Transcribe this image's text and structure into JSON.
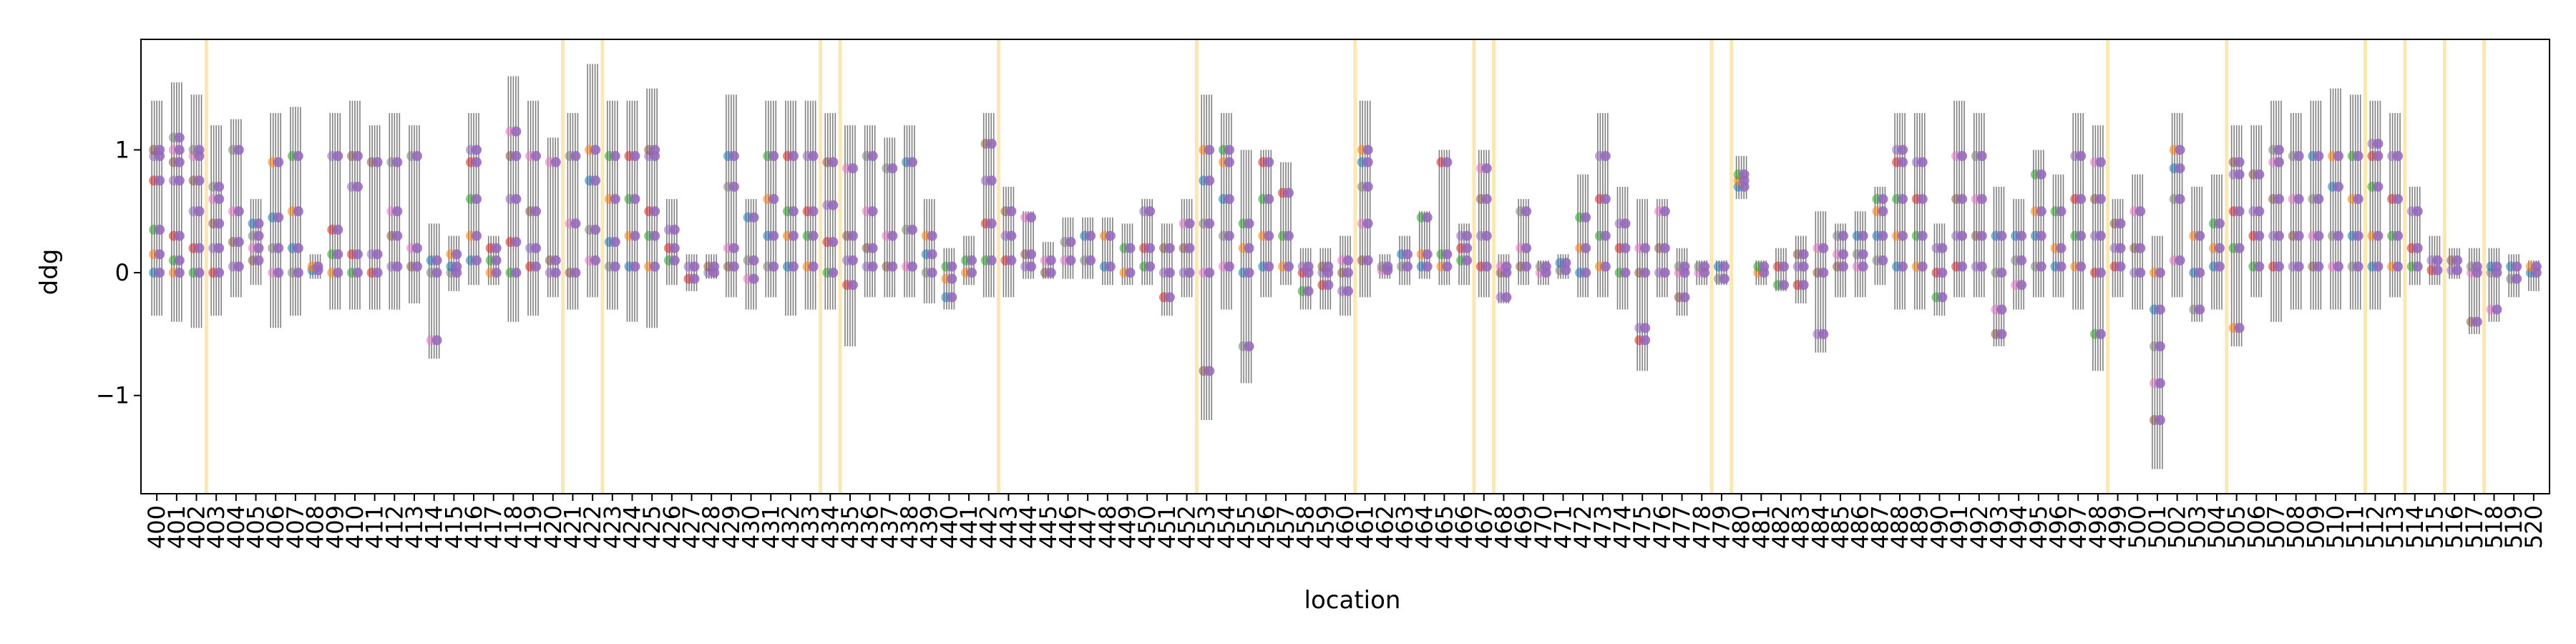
{
  "chart_data": {
    "type": "scatter",
    "title": "",
    "xlabel": "location",
    "ylabel": "ddg",
    "x_start": 400,
    "x_end": 520,
    "ylim": [
      -1.8,
      1.9
    ],
    "yticks": [
      -1,
      0,
      1
    ],
    "ytick_labels": [
      "−1",
      "0",
      "1"
    ],
    "highlight_locations": [
      403,
      421,
      423,
      434,
      435,
      443,
      453,
      461,
      467,
      468,
      479,
      480,
      499,
      505,
      512,
      514,
      516,
      518
    ],
    "colors": {
      "highlight": "#fbe7b3",
      "errorbar": "#808080",
      "series": [
        "#1f77b4",
        "#ff7f0e",
        "#2ca02c",
        "#d62728",
        "#9467bd",
        "#8c564b",
        "#e377c2",
        "#7f7f7f"
      ]
    },
    "locations": [
      {
        "x": 400,
        "lo": -0.35,
        "hi": 1.4,
        "pts": [
          0,
          0.15,
          0.35,
          0.75,
          0.95,
          1.0
        ]
      },
      {
        "x": 401,
        "lo": -0.4,
        "hi": 1.55,
        "pts": [
          0,
          0.1,
          0.3,
          0.75,
          0.9,
          1.0,
          1.1
        ]
      },
      {
        "x": 402,
        "lo": -0.45,
        "hi": 1.45,
        "pts": [
          0,
          0.2,
          0.5,
          0.75,
          0.95,
          1.0
        ]
      },
      {
        "x": 403,
        "lo": -0.35,
        "hi": 1.2,
        "pts": [
          0,
          0.2,
          0.4,
          0.6,
          0.7
        ]
      },
      {
        "x": 404,
        "lo": -0.2,
        "hi": 1.25,
        "pts": [
          0.05,
          0.25,
          0.5,
          1.0
        ]
      },
      {
        "x": 405,
        "lo": -0.1,
        "hi": 0.6,
        "pts": [
          0.1,
          0.2,
          0.3,
          0.4
        ]
      },
      {
        "x": 406,
        "lo": -0.45,
        "hi": 1.3,
        "pts": [
          0,
          0.2,
          0.45,
          0.9
        ]
      },
      {
        "x": 407,
        "lo": -0.35,
        "hi": 1.35,
        "pts": [
          0,
          0.2,
          0.5,
          0.95
        ]
      },
      {
        "x": 408,
        "lo": -0.05,
        "hi": 0.15,
        "pts": [
          0.02,
          0.05
        ]
      },
      {
        "x": 409,
        "lo": -0.3,
        "hi": 1.3,
        "pts": [
          0,
          0.15,
          0.35,
          0.95
        ]
      },
      {
        "x": 410,
        "lo": -0.3,
        "hi": 1.4,
        "pts": [
          0,
          0.15,
          0.7,
          0.95
        ]
      },
      {
        "x": 411,
        "lo": -0.3,
        "hi": 1.2,
        "pts": [
          0,
          0.15,
          0.9
        ]
      },
      {
        "x": 412,
        "lo": -0.3,
        "hi": 1.3,
        "pts": [
          0.05,
          0.3,
          0.5,
          0.9
        ]
      },
      {
        "x": 413,
        "lo": -0.25,
        "hi": 1.2,
        "pts": [
          0.05,
          0.2,
          0.95
        ]
      },
      {
        "x": 414,
        "lo": -0.7,
        "hi": 0.4,
        "pts": [
          -0.55,
          0,
          0.1
        ]
      },
      {
        "x": 415,
        "lo": -0.15,
        "hi": 0.3,
        "pts": [
          0,
          0.05,
          0.15
        ]
      },
      {
        "x": 416,
        "lo": -0.1,
        "hi": 1.3,
        "pts": [
          0.1,
          0.3,
          0.6,
          0.9,
          1.0
        ]
      },
      {
        "x": 417,
        "lo": -0.1,
        "hi": 0.3,
        "pts": [
          0,
          0.1,
          0.2
        ]
      },
      {
        "x": 418,
        "lo": -0.4,
        "hi": 1.6,
        "pts": [
          0,
          0.25,
          0.6,
          0.95,
          1.15
        ]
      },
      {
        "x": 419,
        "lo": -0.35,
        "hi": 1.4,
        "pts": [
          0.05,
          0.2,
          0.5,
          0.95
        ]
      },
      {
        "x": 420,
        "lo": -0.2,
        "hi": 1.1,
        "pts": [
          0,
          0.1,
          0.9
        ]
      },
      {
        "x": 421,
        "lo": -0.3,
        "hi": 1.3,
        "pts": [
          0,
          0.4,
          0.95
        ]
      },
      {
        "x": 422,
        "lo": -0.2,
        "hi": 1.7,
        "pts": [
          0.1,
          0.35,
          0.75,
          1.0
        ]
      },
      {
        "x": 423,
        "lo": -0.3,
        "hi": 1.4,
        "pts": [
          0.05,
          0.25,
          0.6,
          0.95
        ]
      },
      {
        "x": 424,
        "lo": -0.4,
        "hi": 1.4,
        "pts": [
          0.05,
          0.3,
          0.6,
          0.95
        ]
      },
      {
        "x": 425,
        "lo": -0.45,
        "hi": 1.5,
        "pts": [
          0.05,
          0.3,
          0.5,
          0.95,
          1.0
        ]
      },
      {
        "x": 426,
        "lo": -0.1,
        "hi": 0.6,
        "pts": [
          0.1,
          0.2,
          0.35
        ]
      },
      {
        "x": 427,
        "lo": -0.15,
        "hi": 0.15,
        "pts": [
          -0.05,
          0.05
        ]
      },
      {
        "x": 428,
        "lo": -0.05,
        "hi": 0.15,
        "pts": [
          0,
          0.05
        ]
      },
      {
        "x": 429,
        "lo": -0.2,
        "hi": 1.45,
        "pts": [
          0.05,
          0.2,
          0.7,
          0.95
        ]
      },
      {
        "x": 430,
        "lo": -0.3,
        "hi": 0.6,
        "pts": [
          -0.05,
          0.1,
          0.45
        ]
      },
      {
        "x": 431,
        "lo": -0.2,
        "hi": 1.4,
        "pts": [
          0.05,
          0.3,
          0.6,
          0.95
        ]
      },
      {
        "x": 432,
        "lo": -0.35,
        "hi": 1.4,
        "pts": [
          0.05,
          0.3,
          0.5,
          0.95
        ]
      },
      {
        "x": 433,
        "lo": -0.3,
        "hi": 1.4,
        "pts": [
          0.05,
          0.3,
          0.5,
          0.95
        ]
      },
      {
        "x": 434,
        "lo": -0.3,
        "hi": 1.3,
        "pts": [
          0,
          0.25,
          0.55,
          0.9
        ]
      },
      {
        "x": 435,
        "lo": -0.6,
        "hi": 1.2,
        "pts": [
          -0.1,
          0.1,
          0.3,
          0.85
        ]
      },
      {
        "x": 436,
        "lo": -0.2,
        "hi": 1.2,
        "pts": [
          0.05,
          0.2,
          0.5,
          0.95
        ]
      },
      {
        "x": 437,
        "lo": -0.2,
        "hi": 1.1,
        "pts": [
          0.05,
          0.3,
          0.85
        ]
      },
      {
        "x": 438,
        "lo": -0.2,
        "hi": 1.2,
        "pts": [
          0.05,
          0.35,
          0.9
        ]
      },
      {
        "x": 439,
        "lo": -0.25,
        "hi": 0.6,
        "pts": [
          0,
          0.15,
          0.3
        ]
      },
      {
        "x": 440,
        "lo": -0.3,
        "hi": 0.2,
        "pts": [
          -0.2,
          -0.05,
          0.05
        ]
      },
      {
        "x": 441,
        "lo": -0.1,
        "hi": 0.3,
        "pts": [
          0,
          0.1
        ]
      },
      {
        "x": 442,
        "lo": -0.2,
        "hi": 1.3,
        "pts": [
          0.1,
          0.4,
          0.75,
          1.05
        ]
      },
      {
        "x": 443,
        "lo": -0.2,
        "hi": 0.7,
        "pts": [
          0.1,
          0.3,
          0.5
        ]
      },
      {
        "x": 444,
        "lo": -0.05,
        "hi": 0.5,
        "pts": [
          0.05,
          0.15,
          0.45
        ]
      },
      {
        "x": 445,
        "lo": -0.05,
        "hi": 0.25,
        "pts": [
          0,
          0.1
        ]
      },
      {
        "x": 446,
        "lo": -0.05,
        "hi": 0.45,
        "pts": [
          0.1,
          0.25
        ]
      },
      {
        "x": 447,
        "lo": -0.05,
        "hi": 0.45,
        "pts": [
          0.1,
          0.3
        ]
      },
      {
        "x": 448,
        "lo": -0.1,
        "hi": 0.45,
        "pts": [
          0.05,
          0.3
        ]
      },
      {
        "x": 449,
        "lo": -0.1,
        "hi": 0.4,
        "pts": [
          0,
          0.2
        ]
      },
      {
        "x": 450,
        "lo": -0.1,
        "hi": 0.6,
        "pts": [
          0.05,
          0.2,
          0.5
        ]
      },
      {
        "x": 451,
        "lo": -0.35,
        "hi": 0.4,
        "pts": [
          -0.2,
          0,
          0.2
        ]
      },
      {
        "x": 452,
        "lo": -0.2,
        "hi": 0.6,
        "pts": [
          0,
          0.2,
          0.4
        ]
      },
      {
        "x": 453,
        "lo": -1.2,
        "hi": 1.45,
        "pts": [
          -0.8,
          0,
          0.4,
          0.75,
          1.0
        ]
      },
      {
        "x": 454,
        "lo": -0.3,
        "hi": 1.3,
        "pts": [
          0.05,
          0.3,
          0.6,
          0.9,
          1.0
        ]
      },
      {
        "x": 455,
        "lo": -0.9,
        "hi": 1.0,
        "pts": [
          -0.6,
          0,
          0.2,
          0.4
        ]
      },
      {
        "x": 456,
        "lo": -0.2,
        "hi": 1.0,
        "pts": [
          0.05,
          0.3,
          0.6,
          0.9
        ]
      },
      {
        "x": 457,
        "lo": -0.1,
        "hi": 0.9,
        "pts": [
          0.05,
          0.3,
          0.65
        ]
      },
      {
        "x": 458,
        "lo": -0.3,
        "hi": 0.2,
        "pts": [
          -0.15,
          0,
          0.05
        ]
      },
      {
        "x": 459,
        "lo": -0.3,
        "hi": 0.2,
        "pts": [
          -0.1,
          0,
          0.05
        ]
      },
      {
        "x": 460,
        "lo": -0.35,
        "hi": 0.3,
        "pts": [
          -0.15,
          0,
          0.1
        ]
      },
      {
        "x": 461,
        "lo": -0.2,
        "hi": 1.4,
        "pts": [
          0.1,
          0.4,
          0.7,
          0.9,
          1.0
        ]
      },
      {
        "x": 462,
        "lo": -0.05,
        "hi": 0.15,
        "pts": [
          0.02,
          0.05
        ]
      },
      {
        "x": 463,
        "lo": -0.1,
        "hi": 0.3,
        "pts": [
          0.05,
          0.15
        ]
      },
      {
        "x": 464,
        "lo": -0.05,
        "hi": 0.5,
        "pts": [
          0.05,
          0.15,
          0.45
        ]
      },
      {
        "x": 465,
        "lo": -0.1,
        "hi": 1.0,
        "pts": [
          0.05,
          0.15,
          0.9
        ]
      },
      {
        "x": 466,
        "lo": -0.1,
        "hi": 0.4,
        "pts": [
          0.1,
          0.2,
          0.3
        ]
      },
      {
        "x": 467,
        "lo": -0.2,
        "hi": 1.0,
        "pts": [
          0.05,
          0.3,
          0.6,
          0.85
        ]
      },
      {
        "x": 468,
        "lo": -0.25,
        "hi": 0.15,
        "pts": [
          -0.2,
          0,
          0.05
        ]
      },
      {
        "x": 469,
        "lo": -0.1,
        "hi": 0.6,
        "pts": [
          0.05,
          0.2,
          0.5
        ]
      },
      {
        "x": 470,
        "lo": -0.1,
        "hi": 0.1,
        "pts": [
          0,
          0.05
        ]
      },
      {
        "x": 471,
        "lo": -0.05,
        "hi": 0.15,
        "pts": [
          0.02,
          0.08
        ]
      },
      {
        "x": 472,
        "lo": -0.2,
        "hi": 0.8,
        "pts": [
          0,
          0.2,
          0.45
        ]
      },
      {
        "x": 473,
        "lo": -0.2,
        "hi": 1.3,
        "pts": [
          0.05,
          0.3,
          0.6,
          0.95
        ]
      },
      {
        "x": 474,
        "lo": -0.3,
        "hi": 0.7,
        "pts": [
          0,
          0.2,
          0.4
        ]
      },
      {
        "x": 475,
        "lo": -0.8,
        "hi": 0.6,
        "pts": [
          -0.55,
          -0.45,
          0,
          0.2
        ]
      },
      {
        "x": 476,
        "lo": -0.2,
        "hi": 0.6,
        "pts": [
          0,
          0.2,
          0.5
        ]
      },
      {
        "x": 477,
        "lo": -0.35,
        "hi": 0.2,
        "pts": [
          -0.2,
          0,
          0.05
        ]
      },
      {
        "x": 478,
        "lo": -0.1,
        "hi": 0.1,
        "pts": [
          0,
          0.05
        ]
      },
      {
        "x": 479,
        "lo": -0.1,
        "hi": 0.1,
        "pts": [
          -0.05,
          0.05
        ]
      },
      {
        "x": 480,
        "lo": 0.6,
        "hi": 0.95,
        "pts": [
          0.7,
          0.75,
          0.8
        ]
      },
      {
        "x": 481,
        "lo": -0.1,
        "hi": 0.1,
        "pts": [
          0,
          0.05
        ]
      },
      {
        "x": 482,
        "lo": -0.15,
        "hi": 0.2,
        "pts": [
          -0.1,
          0.05
        ]
      },
      {
        "x": 483,
        "lo": -0.25,
        "hi": 0.3,
        "pts": [
          -0.1,
          0.05,
          0.15
        ]
      },
      {
        "x": 484,
        "lo": -0.65,
        "hi": 0.5,
        "pts": [
          -0.5,
          0,
          0.2
        ]
      },
      {
        "x": 485,
        "lo": -0.2,
        "hi": 0.4,
        "pts": [
          0.05,
          0.15,
          0.3
        ]
      },
      {
        "x": 486,
        "lo": -0.2,
        "hi": 0.5,
        "pts": [
          0.05,
          0.15,
          0.3
        ]
      },
      {
        "x": 487,
        "lo": -0.1,
        "hi": 0.7,
        "pts": [
          0.1,
          0.3,
          0.5,
          0.6
        ]
      },
      {
        "x": 488,
        "lo": -0.3,
        "hi": 1.3,
        "pts": [
          0.05,
          0.3,
          0.6,
          0.9,
          1.0
        ]
      },
      {
        "x": 489,
        "lo": -0.3,
        "hi": 1.3,
        "pts": [
          0.05,
          0.3,
          0.6,
          0.9
        ]
      },
      {
        "x": 490,
        "lo": -0.35,
        "hi": 0.4,
        "pts": [
          -0.2,
          0,
          0.2
        ]
      },
      {
        "x": 491,
        "lo": -0.2,
        "hi": 1.4,
        "pts": [
          0.05,
          0.3,
          0.6,
          0.95
        ]
      },
      {
        "x": 492,
        "lo": -0.2,
        "hi": 1.3,
        "pts": [
          0.05,
          0.3,
          0.6,
          0.95
        ]
      },
      {
        "x": 493,
        "lo": -0.6,
        "hi": 0.7,
        "pts": [
          -0.5,
          -0.3,
          0,
          0.3
        ]
      },
      {
        "x": 494,
        "lo": -0.3,
        "hi": 0.6,
        "pts": [
          -0.1,
          0.1,
          0.3
        ]
      },
      {
        "x": 495,
        "lo": -0.2,
        "hi": 1.0,
        "pts": [
          0.05,
          0.3,
          0.5,
          0.8
        ]
      },
      {
        "x": 496,
        "lo": -0.2,
        "hi": 0.8,
        "pts": [
          0.05,
          0.2,
          0.5
        ]
      },
      {
        "x": 497,
        "lo": -0.3,
        "hi": 1.3,
        "pts": [
          0.05,
          0.3,
          0.6,
          0.95
        ]
      },
      {
        "x": 498,
        "lo": -0.8,
        "hi": 1.2,
        "pts": [
          -0.5,
          0,
          0.3,
          0.6,
          0.9
        ]
      },
      {
        "x": 499,
        "lo": -0.2,
        "hi": 0.6,
        "pts": [
          0.05,
          0.2,
          0.4
        ]
      },
      {
        "x": 500,
        "lo": -0.3,
        "hi": 0.8,
        "pts": [
          0,
          0.2,
          0.5
        ]
      },
      {
        "x": 501,
        "lo": -1.6,
        "hi": 0.3,
        "pts": [
          -1.2,
          -0.9,
          -0.6,
          -0.3,
          0
        ]
      },
      {
        "x": 502,
        "lo": -0.2,
        "hi": 1.3,
        "pts": [
          0.1,
          0.6,
          0.85,
          1.0
        ]
      },
      {
        "x": 503,
        "lo": -0.4,
        "hi": 0.7,
        "pts": [
          -0.3,
          0,
          0.3
        ]
      },
      {
        "x": 504,
        "lo": -0.3,
        "hi": 0.8,
        "pts": [
          0.05,
          0.2,
          0.4
        ]
      },
      {
        "x": 505,
        "lo": -0.6,
        "hi": 1.2,
        "pts": [
          -0.45,
          0.2,
          0.5,
          0.8,
          0.9
        ]
      },
      {
        "x": 506,
        "lo": -0.2,
        "hi": 1.2,
        "pts": [
          0.05,
          0.3,
          0.5,
          0.8
        ]
      },
      {
        "x": 507,
        "lo": -0.4,
        "hi": 1.4,
        "pts": [
          0.05,
          0.3,
          0.6,
          0.9,
          1.0
        ]
      },
      {
        "x": 508,
        "lo": -0.3,
        "hi": 1.3,
        "pts": [
          0.05,
          0.3,
          0.6,
          0.95
        ]
      },
      {
        "x": 509,
        "lo": -0.3,
        "hi": 1.4,
        "pts": [
          0.05,
          0.3,
          0.6,
          0.95
        ]
      },
      {
        "x": 510,
        "lo": -0.3,
        "hi": 1.5,
        "pts": [
          0.05,
          0.3,
          0.7,
          0.95
        ]
      },
      {
        "x": 511,
        "lo": -0.3,
        "hi": 1.45,
        "pts": [
          0.05,
          0.3,
          0.6,
          0.95
        ]
      },
      {
        "x": 512,
        "lo": -0.3,
        "hi": 1.4,
        "pts": [
          0.05,
          0.3,
          0.7,
          0.95,
          1.05
        ]
      },
      {
        "x": 513,
        "lo": -0.2,
        "hi": 1.3,
        "pts": [
          0.05,
          0.3,
          0.6,
          0.95
        ]
      },
      {
        "x": 514,
        "lo": -0.1,
        "hi": 0.7,
        "pts": [
          0.05,
          0.2,
          0.5
        ]
      },
      {
        "x": 515,
        "lo": -0.1,
        "hi": 0.3,
        "pts": [
          0.02,
          0.1
        ]
      },
      {
        "x": 516,
        "lo": -0.05,
        "hi": 0.2,
        "pts": [
          0.02,
          0.1
        ]
      },
      {
        "x": 517,
        "lo": -0.5,
        "hi": 0.2,
        "pts": [
          -0.4,
          0,
          0.05
        ]
      },
      {
        "x": 518,
        "lo": -0.4,
        "hi": 0.2,
        "pts": [
          -0.3,
          0,
          0.05
        ]
      },
      {
        "x": 519,
        "lo": -0.2,
        "hi": 0.15,
        "pts": [
          -0.05,
          0.05
        ]
      },
      {
        "x": 520,
        "lo": -0.15,
        "hi": 0.1,
        "pts": [
          0,
          0.05
        ]
      }
    ]
  }
}
